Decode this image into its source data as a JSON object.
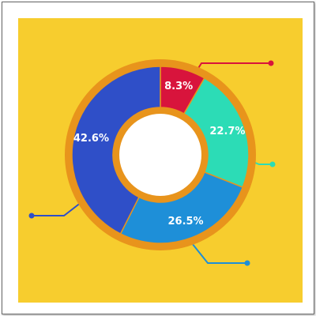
{
  "colors": {
    "background": "#f7cd2e",
    "ring": "#e8941c",
    "center": "#ffffff",
    "divider": "#e8941c"
  },
  "chart_data": {
    "type": "pie",
    "variant": "donut",
    "title": "",
    "legend": "none",
    "slices": [
      {
        "label": "8.3%",
        "value": 8.3,
        "color": "#d8143c"
      },
      {
        "label": "22.7%",
        "value": 22.7,
        "color": "#2cdcb6"
      },
      {
        "label": "26.5%",
        "value": 26.5,
        "color": "#1e8fd8"
      },
      {
        "label": "42.6%",
        "value": 42.6,
        "color": "#2f4fc8"
      }
    ]
  }
}
